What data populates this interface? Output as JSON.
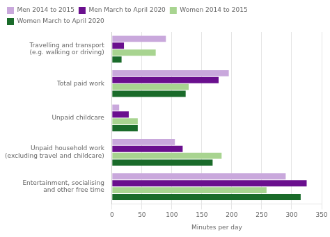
{
  "chart_data": {
    "type": "bar",
    "orientation": "horizontal",
    "categories": [
      "Travelling and transport\n(e.g. walking or driving)",
      "Total paid work",
      "Unpaid childcare",
      "Unpaid household work\n(excluding travel and childcare)",
      "Entertainment, socialising\nand other free time"
    ],
    "series": [
      {
        "name": "Men 2014 to 2015",
        "color": "#c9a8dc",
        "values": [
          90,
          195,
          12,
          105,
          290
        ]
      },
      {
        "name": "Men March to April 2020",
        "color": "#6a0f8e",
        "values": [
          20,
          178,
          28,
          118,
          325
        ]
      },
      {
        "name": "Women 2014 to 2015",
        "color": "#a8d490",
        "values": [
          73,
          128,
          43,
          183,
          258
        ]
      },
      {
        "name": "Women March to April 2020",
        "color": "#1a6b2a",
        "values": [
          16,
          123,
          43,
          168,
          315
        ]
      }
    ],
    "xlabel": "Minutes per day",
    "xlim": [
      0,
      350
    ],
    "xticks": [
      0,
      50,
      100,
      150,
      200,
      250,
      300,
      350
    ],
    "grid": true,
    "legend": "upper left"
  }
}
